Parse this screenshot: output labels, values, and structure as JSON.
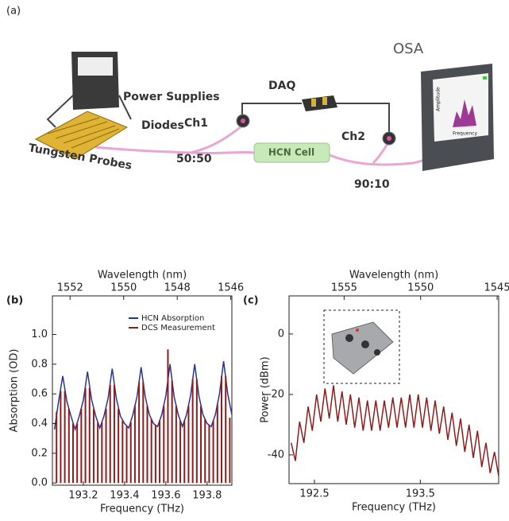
{
  "diagram": {
    "panel_label": "(a)",
    "power_supplies": "Power Supplies",
    "daq": "DAQ",
    "osa": "OSA",
    "diodes": "Diodes",
    "ch1": "Ch1",
    "ch2": "Ch2",
    "tungsten_probes": "Tungsten Probes",
    "splitter_5050": "50:50",
    "hcn_cell": "HCN Cell",
    "splitter_9010": "90:10",
    "osa_screen_y": "Amplitude",
    "osa_screen_x": "Frequency"
  },
  "chart_data": [
    {
      "type": "line",
      "panel_label": "(b)",
      "xlabel": "Frequency (THz)",
      "ylabel": "Absorption (OD)",
      "x2label": "Wavelength (nm)",
      "xlim": [
        193.05,
        193.92
      ],
      "xticks": [
        193.2,
        193.4,
        193.6,
        193.8
      ],
      "x2lim": [
        1552.66,
        1545.96
      ],
      "x2ticks": [
        1552,
        1550,
        1548,
        1546
      ],
      "ylim": [
        -0.015,
        1.26
      ],
      "yticks": [
        {
          "value": 0,
          "label": "0.0"
        },
        0.2,
        0.4,
        0.6,
        0.8,
        {
          "value": 1,
          "label": "1.0"
        }
      ],
      "legend": "upper right",
      "series": [
        {
          "name": "HCN Absorption",
          "color": "#2a3592",
          "x": [
            193.06,
            193.08,
            193.1,
            193.12,
            193.14,
            193.16,
            193.18,
            193.2,
            193.22,
            193.24,
            193.26,
            193.28,
            193.3,
            193.32,
            193.34,
            193.36,
            193.38,
            193.4,
            193.42,
            193.44,
            193.46,
            193.48,
            193.5,
            193.52,
            193.54,
            193.56,
            193.58,
            193.6,
            193.62,
            193.64,
            193.66,
            193.68,
            193.7,
            193.72,
            193.74,
            193.76,
            193.78,
            193.8,
            193.82,
            193.84,
            193.86,
            193.88,
            193.9,
            193.92
          ],
          "values": [
            0.36,
            0.55,
            0.72,
            0.55,
            0.45,
            0.36,
            0.45,
            0.56,
            0.75,
            0.56,
            0.45,
            0.37,
            0.45,
            0.57,
            0.77,
            0.57,
            0.45,
            0.4,
            0.37,
            0.46,
            0.58,
            0.78,
            0.58,
            0.46,
            0.4,
            0.38,
            0.46,
            0.59,
            0.8,
            0.58,
            0.46,
            0.38,
            0.46,
            0.59,
            0.8,
            0.59,
            0.46,
            0.4,
            0.38,
            0.46,
            0.6,
            0.82,
            0.6,
            0.46
          ]
        },
        {
          "name": "DCS Measurement",
          "color": "#8e1c1c",
          "style": "stem",
          "x": [
            193.07,
            193.09,
            193.11,
            193.13,
            193.15,
            193.17,
            193.19,
            193.21,
            193.23,
            193.25,
            193.27,
            193.29,
            193.31,
            193.33,
            193.35,
            193.37,
            193.39,
            193.41,
            193.43,
            193.45,
            193.47,
            193.49,
            193.51,
            193.53,
            193.55,
            193.57,
            193.59,
            193.61,
            193.63,
            193.65,
            193.67,
            193.69,
            193.71,
            193.73,
            193.75,
            193.77,
            193.79,
            193.81,
            193.83,
            193.85,
            193.87,
            193.89,
            193.91
          ],
          "values": [
            0.48,
            0.62,
            0.62,
            0.5,
            0.4,
            0.4,
            0.5,
            0.64,
            0.64,
            0.5,
            0.41,
            0.41,
            0.5,
            0.66,
            0.66,
            0.5,
            0.42,
            0.38,
            0.41,
            0.52,
            0.68,
            0.68,
            0.52,
            0.43,
            0.39,
            0.42,
            0.52,
            0.9,
            0.69,
            0.52,
            0.42,
            0.42,
            0.52,
            0.7,
            0.7,
            0.52,
            0.43,
            0.39,
            0.42,
            0.53,
            0.72,
            0.72,
            0.44
          ]
        }
      ]
    },
    {
      "type": "line",
      "panel_label": "(c)",
      "xlabel": "Frequency (THz)",
      "ylabel": "Power (dBm)",
      "x2label": "Wavelength (nm)",
      "xlim": [
        192.26,
        194.24
      ],
      "xticks": [
        192.5,
        193.5
      ],
      "x2lim": [
        1558.6,
        1544.9
      ],
      "x2ticks": [
        1555,
        1550,
        1545
      ],
      "ylim": [
        -49.5,
        12.6
      ],
      "yticks": [
        0,
        -20,
        -40
      ],
      "series": [
        {
          "color": "#8e1c1c",
          "x": [
            192.28,
            192.32,
            192.36,
            192.4,
            192.44,
            192.48,
            192.52,
            192.56,
            192.6,
            192.64,
            192.68,
            192.72,
            192.76,
            192.8,
            192.84,
            192.88,
            192.92,
            192.96,
            193.0,
            193.04,
            193.08,
            193.12,
            193.16,
            193.2,
            193.24,
            193.28,
            193.32,
            193.36,
            193.4,
            193.44,
            193.48,
            193.52,
            193.56,
            193.6,
            193.64,
            193.68,
            193.72,
            193.76,
            193.8,
            193.84,
            193.88,
            193.92,
            193.96,
            194.0,
            194.04,
            194.08,
            194.12,
            194.16,
            194.2,
            194.24
          ],
          "values": [
            -36,
            -42,
            -29,
            -36,
            -24,
            -32,
            -20,
            -29,
            -18,
            -28,
            -17,
            -29,
            -19,
            -30,
            -20,
            -31,
            -21,
            -32,
            -22,
            -32,
            -22,
            -32,
            -22,
            -31,
            -21,
            -31,
            -21,
            -31,
            -20,
            -31,
            -20,
            -31,
            -21,
            -32,
            -22,
            -33,
            -24,
            -35,
            -26,
            -37,
            -28,
            -39,
            -30,
            -41,
            -32,
            -44,
            -36,
            -46,
            -39,
            -47
          ]
        }
      ]
    }
  ]
}
